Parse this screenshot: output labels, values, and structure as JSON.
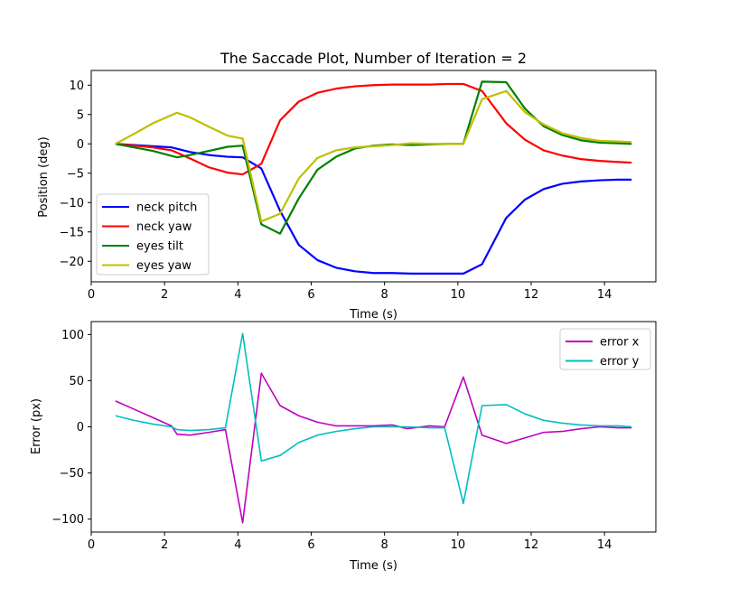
{
  "chart_data": [
    {
      "type": "line",
      "title": "The Saccade Plot, Number of Iteration = 2",
      "xlabel": "Time (s)",
      "ylabel": "Position (deg)",
      "xlim": [
        0,
        15.4
      ],
      "ylim": [
        -23.5,
        12.5
      ],
      "xticks": [
        0,
        2,
        4,
        6,
        8,
        10,
        12,
        14
      ],
      "xtick_labels": [
        "0",
        "2",
        "4",
        "6",
        "8",
        "10",
        "12",
        "14"
      ],
      "yticks": [
        -20,
        -15,
        -10,
        -5,
        0,
        5,
        10
      ],
      "ytick_labels": [
        "−20",
        "−15",
        "−10",
        "−5",
        "0",
        "5",
        "10"
      ],
      "legend": "lower-left",
      "grid": false,
      "series": [
        {
          "name": "neck pitch",
          "color": "#0000ff",
          "x": [
            0.66,
            1.17,
            1.68,
            2.19,
            2.7,
            3.21,
            3.72,
            4.13,
            4.64,
            5.15,
            5.66,
            6.17,
            6.68,
            7.19,
            7.7,
            8.21,
            8.72,
            9.23,
            9.74,
            10.15,
            10.66,
            11.32,
            11.83,
            12.34,
            12.85,
            13.36,
            13.87,
            14.38,
            14.74
          ],
          "y": [
            0,
            -0.2,
            -0.4,
            -0.6,
            -1.4,
            -1.9,
            -2.2,
            -2.3,
            -4.2,
            -11.4,
            -17.2,
            -19.8,
            -21.1,
            -21.7,
            -22.0,
            -22.0,
            -22.1,
            -22.1,
            -22.1,
            -22.1,
            -20.5,
            -12.6,
            -9.5,
            -7.7,
            -6.8,
            -6.4,
            -6.2,
            -6.1,
            -6.1
          ]
        },
        {
          "name": "neck yaw",
          "color": "#ff0000",
          "x": [
            0.66,
            1.17,
            1.68,
            2.19,
            2.7,
            3.21,
            3.72,
            4.13,
            4.64,
            5.15,
            5.66,
            6.17,
            6.68,
            7.19,
            7.7,
            8.21,
            8.72,
            9.23,
            9.74,
            10.15,
            10.66,
            11.32,
            11.83,
            12.34,
            12.85,
            13.36,
            13.87,
            14.38,
            14.74
          ],
          "y": [
            0,
            -0.3,
            -0.6,
            -1.1,
            -2.5,
            -4.0,
            -4.9,
            -5.2,
            -3.4,
            4.0,
            7.2,
            8.7,
            9.4,
            9.8,
            10.0,
            10.1,
            10.1,
            10.1,
            10.2,
            10.2,
            9.0,
            3.5,
            0.7,
            -1.1,
            -2.0,
            -2.6,
            -2.9,
            -3.1,
            -3.2
          ]
        },
        {
          "name": "eyes tilt",
          "color": "#008000",
          "x": [
            0.66,
            1.17,
            1.68,
            2.34,
            2.7,
            3.21,
            3.72,
            4.13,
            4.64,
            5.15,
            5.66,
            6.17,
            6.68,
            7.19,
            7.7,
            8.21,
            8.72,
            9.23,
            9.74,
            10.15,
            10.66,
            11.32,
            11.83,
            12.34,
            12.85,
            13.36,
            13.87,
            14.38,
            14.74
          ],
          "y": [
            0,
            -0.6,
            -1.2,
            -2.3,
            -1.9,
            -1.2,
            -0.5,
            -0.3,
            -13.7,
            -15.3,
            -9.3,
            -4.4,
            -2.2,
            -0.8,
            -0.3,
            -0.1,
            -0.2,
            -0.1,
            0,
            0,
            10.6,
            10.5,
            6.0,
            3.0,
            1.5,
            0.6,
            0.2,
            0.1,
            0
          ]
        },
        {
          "name": "eyes yaw",
          "color": "#bfbf00",
          "x": [
            0.66,
            1.17,
            1.68,
            2.34,
            2.7,
            3.21,
            3.72,
            4.13,
            4.64,
            5.15,
            5.66,
            6.17,
            6.68,
            7.19,
            7.7,
            8.21,
            8.72,
            9.23,
            9.74,
            10.15,
            10.66,
            11.32,
            11.83,
            12.34,
            12.85,
            13.36,
            13.87,
            14.38,
            14.74
          ],
          "y": [
            0,
            1.7,
            3.5,
            5.3,
            4.5,
            2.9,
            1.4,
            0.9,
            -13.2,
            -11.9,
            -5.9,
            -2.4,
            -1.1,
            -0.6,
            -0.4,
            -0.2,
            0.1,
            0,
            0,
            0,
            7.6,
            9.0,
            5.4,
            3.3,
            1.8,
            1.0,
            0.5,
            0.4,
            0.3
          ]
        }
      ]
    },
    {
      "type": "line",
      "title": "",
      "xlabel": "Time (s)",
      "ylabel": "Error (px)",
      "xlim": [
        0,
        15.4
      ],
      "ylim": [
        -114,
        114
      ],
      "xticks": [
        0,
        2,
        4,
        6,
        8,
        10,
        12,
        14
      ],
      "xtick_labels": [
        "0",
        "2",
        "4",
        "6",
        "8",
        "10",
        "12",
        "14"
      ],
      "yticks": [
        -100,
        -50,
        0,
        50,
        100
      ],
      "ytick_labels": [
        "−100",
        "−50",
        "0",
        "50",
        "100"
      ],
      "legend": "top-right",
      "grid": false,
      "series": [
        {
          "name": "error x",
          "color": "#bf00bf",
          "x": [
            0.66,
            1.17,
            1.68,
            2.19,
            2.34,
            2.7,
            3.21,
            3.66,
            4.13,
            4.64,
            5.15,
            5.66,
            6.17,
            6.68,
            7.19,
            7.7,
            8.21,
            8.62,
            9.23,
            9.64,
            10.15,
            10.66,
            11.32,
            11.83,
            12.34,
            12.85,
            13.36,
            13.87,
            14.38,
            14.74
          ],
          "y": [
            28,
            19,
            10,
            1,
            -8,
            -9,
            -6,
            -3,
            -104,
            58,
            23,
            12,
            5,
            1,
            1,
            1,
            2,
            -2,
            1,
            0,
            54,
            -9,
            -18,
            -12,
            -6,
            -5,
            -2,
            0,
            -1,
            -1
          ]
        },
        {
          "name": "error y",
          "color": "#00bfbf",
          "x": [
            0.66,
            1.17,
            1.68,
            2.19,
            2.34,
            2.7,
            3.21,
            3.66,
            4.13,
            4.64,
            5.15,
            5.66,
            6.17,
            6.68,
            7.19,
            7.7,
            8.21,
            8.62,
            9.23,
            9.64,
            10.15,
            10.66,
            11.32,
            11.83,
            12.34,
            12.85,
            13.36,
            13.87,
            14.38,
            14.74
          ],
          "y": [
            12,
            7,
            3,
            0,
            -3,
            -4,
            -3,
            -1,
            101,
            -37,
            -31,
            -17,
            -9,
            -5,
            -2,
            0,
            0,
            0,
            -1,
            -1,
            -83,
            23,
            24,
            14,
            7,
            4,
            2,
            1,
            1,
            0
          ]
        }
      ]
    }
  ]
}
